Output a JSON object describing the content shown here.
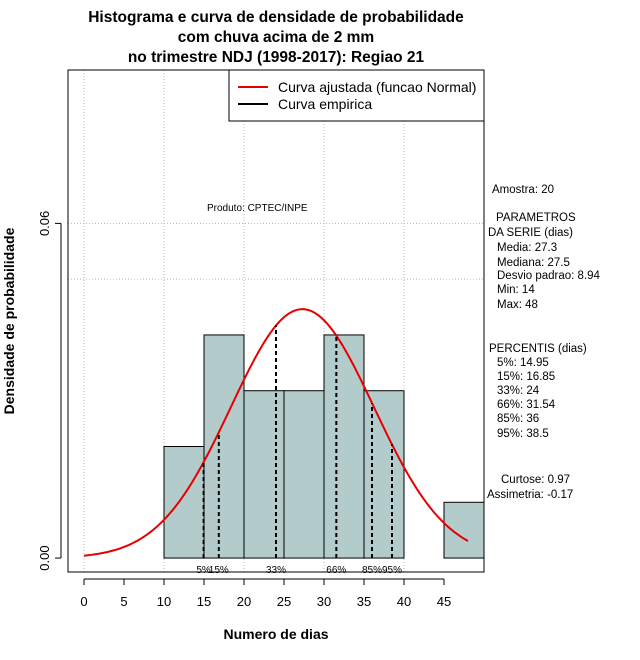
{
  "chart_data": {
    "type": "histogram",
    "title": [
      "Histograma e curva de densidade de probabilidade",
      "com chuva acima de 2 mm",
      "no trimestre NDJ (1998-2017): Regiao 21"
    ],
    "xlabel": "Numero de dias",
    "ylabel": "Densidade de probabilidade",
    "xlim": [
      -2,
      50
    ],
    "ylim": [
      -0.0025,
      0.0875
    ],
    "x_ticks": [
      0,
      5,
      10,
      15,
      20,
      25,
      30,
      35,
      40,
      45
    ],
    "y_ticks": [
      0.0,
      0.06
    ],
    "y_tick_labels": [
      "0.00",
      "0.06"
    ],
    "grid_x": [
      0,
      10,
      20,
      30,
      40
    ],
    "grid_y": [
      0.06,
      0.05
    ],
    "bins": [
      {
        "start": 10,
        "end": 15,
        "density": 0.02
      },
      {
        "start": 15,
        "end": 20,
        "density": 0.04
      },
      {
        "start": 20,
        "end": 25,
        "density": 0.03
      },
      {
        "start": 25,
        "end": 30,
        "density": 0.03
      },
      {
        "start": 30,
        "end": 35,
        "density": 0.04
      },
      {
        "start": 35,
        "end": 40,
        "density": 0.03
      },
      {
        "start": 40,
        "end": 45,
        "density": 0.0
      },
      {
        "start": 45,
        "end": 50,
        "density": 0.01
      }
    ],
    "bar_color": "#b4cbcb",
    "fitted_curve": {
      "mean": 27.3,
      "sd": 8.94,
      "x_range": [
        0,
        48
      ],
      "color": "#e80000"
    },
    "percentile_lines": [
      {
        "label": "5%",
        "x": 14.95
      },
      {
        "label": "15%",
        "x": 16.85
      },
      {
        "label": "33%",
        "x": 24
      },
      {
        "label": "66%",
        "x": 31.54
      },
      {
        "label": "85%",
        "x": 36
      },
      {
        "label": "95%",
        "x": 38.5
      }
    ],
    "legend": {
      "position": "top-right",
      "entries": [
        {
          "label": "Curva ajustada (funcao Normal)",
          "color": "#e80000"
        },
        {
          "label": "Curva empirica",
          "color": "#000000"
        }
      ]
    },
    "annotation": "Produto: CPTEC/INPE"
  },
  "stats": {
    "amostra": "Amostra: 20",
    "parametros_title": "PARAMETROS",
    "parametros_subtitle": "DA SERIE (dias)",
    "parametros": [
      "Media: 27.3",
      "Mediana: 27.5",
      "Desvio padrao: 8.94",
      "Min: 14",
      "Max: 48"
    ],
    "percentis_title": "PERCENTIS (dias)",
    "percentis": [
      "5%: 14.95",
      "15%: 16.85",
      "33%: 24",
      "66%: 31.54",
      "85%: 36",
      "95%: 38.5"
    ],
    "curtose": "Curtose: 0.97",
    "assimetria": "Assimetria: -0.17"
  }
}
